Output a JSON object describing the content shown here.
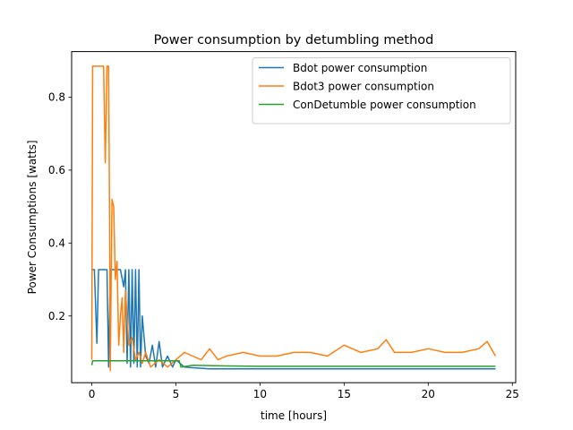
{
  "chart_data": {
    "type": "line",
    "title": "Power consumption by detumbling method",
    "xlabel": "time [hours]",
    "ylabel": "Power Consumptions [watts]",
    "xlim": [
      -1.2,
      25.2
    ],
    "ylim": [
      0.017,
      0.925
    ],
    "xticks": [
      0,
      5,
      10,
      15,
      20,
      25
    ],
    "yticks": [
      0.2,
      0.4,
      0.6,
      0.8
    ],
    "grid": false,
    "legend_position": "upper-right",
    "series": [
      {
        "name": "Bdot power consumption",
        "color": "#1f77b4",
        "x": [
          0,
          0.05,
          0.15,
          0.3,
          0.4,
          0.5,
          0.6,
          0.8,
          0.9,
          1.0,
          1.1,
          1.2,
          1.3,
          1.5,
          1.7,
          1.9,
          2.0,
          2.1,
          2.2,
          2.3,
          2.4,
          2.5,
          2.6,
          2.7,
          2.8,
          2.9,
          3.0,
          3.2,
          3.4,
          3.6,
          3.8,
          4.0,
          4.2,
          4.5,
          4.8,
          5.0,
          5.5,
          6.0,
          7.0,
          8.0,
          10.0,
          12.0,
          15.0,
          18.0,
          20.0,
          22.0,
          24.0
        ],
        "y": [
          0.327,
          0.327,
          0.327,
          0.125,
          0.327,
          0.327,
          0.327,
          0.327,
          0.327,
          0.06,
          0.327,
          0.327,
          0.327,
          0.327,
          0.327,
          0.28,
          0.327,
          0.07,
          0.327,
          0.06,
          0.327,
          0.07,
          0.327,
          0.06,
          0.327,
          0.06,
          0.2,
          0.09,
          0.07,
          0.12,
          0.06,
          0.13,
          0.06,
          0.09,
          0.06,
          0.08,
          0.06,
          0.058,
          0.055,
          0.055,
          0.055,
          0.055,
          0.055,
          0.055,
          0.055,
          0.055,
          0.055
        ]
      },
      {
        "name": "Bdot3 power consumption",
        "color": "#ff7f0e",
        "x": [
          0,
          0.05,
          0.1,
          0.3,
          0.5,
          0.7,
          0.8,
          0.9,
          1.0,
          1.05,
          1.1,
          1.15,
          1.2,
          1.3,
          1.4,
          1.5,
          1.6,
          1.7,
          1.8,
          1.9,
          2.0,
          2.2,
          2.4,
          2.6,
          2.8,
          3.0,
          3.2,
          3.5,
          4.0,
          4.5,
          5.0,
          5.5,
          6.0,
          6.5,
          7.0,
          7.5,
          8.0,
          9.0,
          10.0,
          11.0,
          12.0,
          13.0,
          14.0,
          15.0,
          16.0,
          17.0,
          17.5,
          18.0,
          19.0,
          20.0,
          21.0,
          22.0,
          23.0,
          23.5,
          24.0
        ],
        "y": [
          0.08,
          0.885,
          0.885,
          0.885,
          0.885,
          0.885,
          0.62,
          0.885,
          0.885,
          0.5,
          0.05,
          0.3,
          0.52,
          0.5,
          0.3,
          0.35,
          0.12,
          0.2,
          0.25,
          0.1,
          0.27,
          0.12,
          0.14,
          0.08,
          0.1,
          0.07,
          0.1,
          0.06,
          0.08,
          0.06,
          0.08,
          0.1,
          0.09,
          0.08,
          0.11,
          0.08,
          0.09,
          0.1,
          0.09,
          0.09,
          0.1,
          0.1,
          0.09,
          0.12,
          0.1,
          0.11,
          0.135,
          0.1,
          0.1,
          0.11,
          0.1,
          0.1,
          0.11,
          0.13,
          0.09
        ]
      },
      {
        "name": "ConDetumble power consumption",
        "color": "#2ca02c",
        "x": [
          0,
          0.05,
          1.0,
          2.0,
          3.0,
          4.0,
          5.0,
          5.2,
          5.3,
          6.0,
          8.0,
          10.0,
          12.0,
          14.0,
          16.0,
          18.0,
          20.0,
          22.0,
          24.0
        ],
        "y": [
          0.065,
          0.077,
          0.077,
          0.077,
          0.077,
          0.077,
          0.077,
          0.077,
          0.06,
          0.065,
          0.063,
          0.062,
          0.062,
          0.062,
          0.062,
          0.062,
          0.062,
          0.062,
          0.062
        ]
      }
    ]
  }
}
